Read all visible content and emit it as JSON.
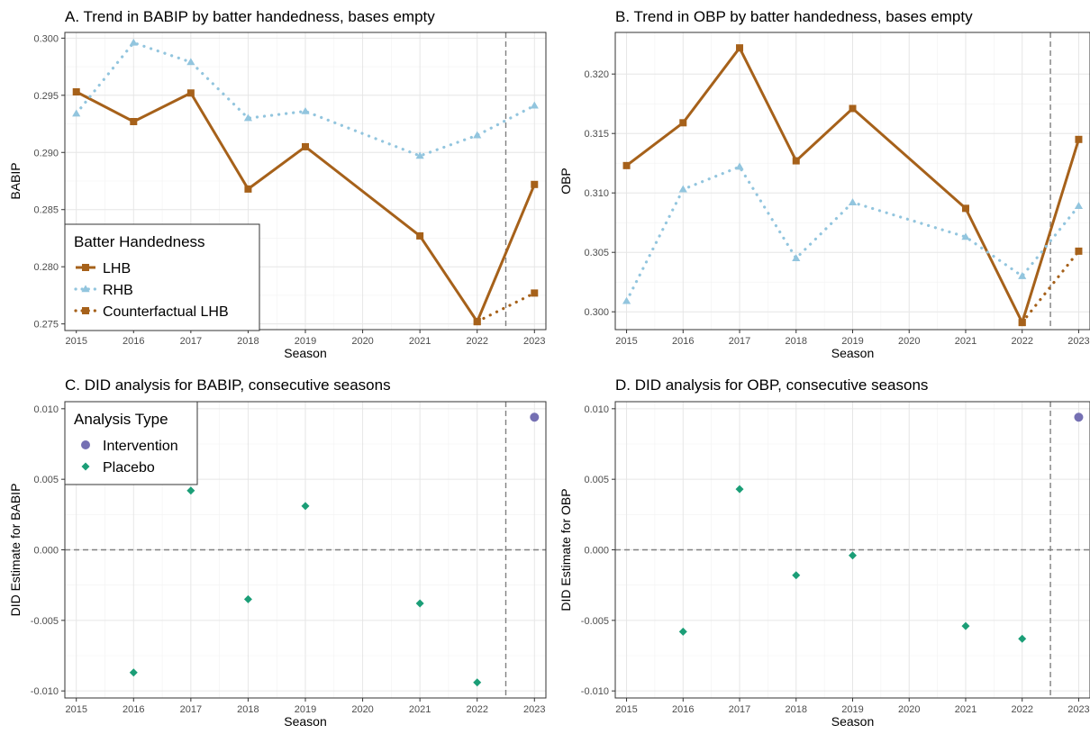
{
  "chart_data": [
    {
      "type": "line",
      "title": "A. Trend in BABIP by batter handedness, bases empty",
      "xlabel": "Season",
      "ylabel": "BABIP",
      "x": [
        2015,
        2016,
        2017,
        2018,
        2019,
        2020,
        2021,
        2022,
        2023
      ],
      "xlim": [
        2014.8,
        2023.2
      ],
      "ylim": [
        0.2745,
        0.3005
      ],
      "yticks": [
        "0.275",
        "0.280",
        "0.285",
        "0.290",
        "0.295",
        "0.300"
      ],
      "ytick_values": [
        0.275,
        0.28,
        0.285,
        0.29,
        0.295,
        0.3
      ],
      "intervention_x": 2022.5,
      "grid": true,
      "legend": {
        "title": "Batter Handedness",
        "placement": "bottom-left",
        "entries": [
          "LHB",
          "RHB",
          "Counterfactual LHB"
        ]
      },
      "series": [
        {
          "name": "LHB",
          "x": [
            2015,
            2016,
            2017,
            2018,
            2019,
            2021,
            2022,
            2023
          ],
          "values": [
            0.2953,
            0.2927,
            0.2952,
            0.2868,
            0.2905,
            0.2827,
            0.2752,
            0.2872
          ],
          "color": "#A6611A",
          "style": "solid",
          "marker": "square"
        },
        {
          "name": "RHB",
          "x": [
            2015,
            2016,
            2017,
            2018,
            2019,
            2021,
            2022,
            2023
          ],
          "values": [
            0.2934,
            0.2996,
            0.2979,
            0.293,
            0.2936,
            0.2897,
            0.2915,
            0.2941
          ],
          "color": "#92C5DE",
          "style": "dotted",
          "marker": "triangle"
        },
        {
          "name": "Counterfactual LHB",
          "x": [
            2022,
            2023
          ],
          "values": [
            0.2752,
            0.2777
          ],
          "color": "#A6611A",
          "style": "dotted",
          "marker": "square"
        }
      ]
    },
    {
      "type": "line",
      "title": "B. Trend in OBP by batter handedness, bases empty",
      "xlabel": "Season",
      "ylabel": "OBP",
      "x": [
        2015,
        2016,
        2017,
        2018,
        2019,
        2020,
        2021,
        2022,
        2023
      ],
      "xlim": [
        2014.8,
        2023.2
      ],
      "ylim": [
        0.2985,
        0.3235
      ],
      "yticks": [
        "0.300",
        "0.305",
        "0.310",
        "0.315",
        "0.320"
      ],
      "ytick_values": [
        0.3,
        0.305,
        0.31,
        0.315,
        0.32
      ],
      "intervention_x": 2022.5,
      "grid": true,
      "series": [
        {
          "name": "LHB",
          "x": [
            2015,
            2016,
            2017,
            2018,
            2019,
            2021,
            2022,
            2023
          ],
          "values": [
            0.3123,
            0.3159,
            0.3222,
            0.3127,
            0.3171,
            0.3087,
            0.2991,
            0.3145
          ],
          "color": "#A6611A",
          "style": "solid",
          "marker": "square"
        },
        {
          "name": "RHB",
          "x": [
            2015,
            2016,
            2017,
            2018,
            2019,
            2021,
            2022,
            2023
          ],
          "values": [
            0.3009,
            0.3103,
            0.3122,
            0.3045,
            0.3092,
            0.3063,
            0.303,
            0.3089
          ],
          "color": "#92C5DE",
          "style": "dotted",
          "marker": "triangle"
        },
        {
          "name": "Counterfactual LHB",
          "x": [
            2022,
            2023
          ],
          "values": [
            0.2991,
            0.3051
          ],
          "color": "#A6611A",
          "style": "dotted",
          "marker": "square"
        }
      ]
    },
    {
      "type": "scatter",
      "title": "C. DID analysis for BABIP, consecutive seasons",
      "xlabel": "Season",
      "ylabel": "DID Estimate for BABIP",
      "x": [
        2015,
        2016,
        2017,
        2018,
        2019,
        2020,
        2021,
        2022,
        2023
      ],
      "xlim": [
        2014.8,
        2023.2
      ],
      "ylim": [
        -0.0105,
        0.0105
      ],
      "yticks": [
        "-0.010",
        "-0.005",
        "0.000",
        "0.005",
        "0.010"
      ],
      "ytick_values": [
        -0.01,
        -0.005,
        0.0,
        0.005,
        0.01
      ],
      "intervention_x": 2022.5,
      "zero_line": true,
      "grid": true,
      "legend": {
        "title": "Analysis Type",
        "placement": "top-left",
        "entries": [
          "Intervention",
          "Placebo"
        ]
      },
      "series": [
        {
          "name": "Intervention",
          "x": [
            2023
          ],
          "values": [
            0.0094
          ],
          "color": "#7570B3",
          "marker": "circle"
        },
        {
          "name": "Placebo",
          "x": [
            2016,
            2017,
            2018,
            2019,
            2021,
            2022
          ],
          "values": [
            -0.0087,
            0.0042,
            -0.0035,
            0.0031,
            -0.0038,
            -0.0094
          ],
          "color": "#1B9E77",
          "marker": "diamond"
        }
      ]
    },
    {
      "type": "scatter",
      "title": "D. DID analysis for OBP, consecutive seasons",
      "xlabel": "Season",
      "ylabel": "DID Estimate for OBP",
      "x": [
        2015,
        2016,
        2017,
        2018,
        2019,
        2020,
        2021,
        2022,
        2023
      ],
      "xlim": [
        2014.8,
        2023.2
      ],
      "ylim": [
        -0.0105,
        0.0105
      ],
      "yticks": [
        "-0.010",
        "-0.005",
        "0.000",
        "0.005",
        "0.010"
      ],
      "ytick_values": [
        -0.01,
        -0.005,
        0.0,
        0.005,
        0.01
      ],
      "intervention_x": 2022.5,
      "zero_line": true,
      "grid": true,
      "series": [
        {
          "name": "Intervention",
          "x": [
            2023
          ],
          "values": [
            0.0094
          ],
          "color": "#7570B3",
          "marker": "circle"
        },
        {
          "name": "Placebo",
          "x": [
            2016,
            2017,
            2018,
            2019,
            2021,
            2022
          ],
          "values": [
            -0.0058,
            0.0043,
            -0.0018,
            -0.0004,
            -0.0054,
            -0.0063
          ],
          "color": "#1B9E77",
          "marker": "diamond"
        }
      ]
    }
  ]
}
